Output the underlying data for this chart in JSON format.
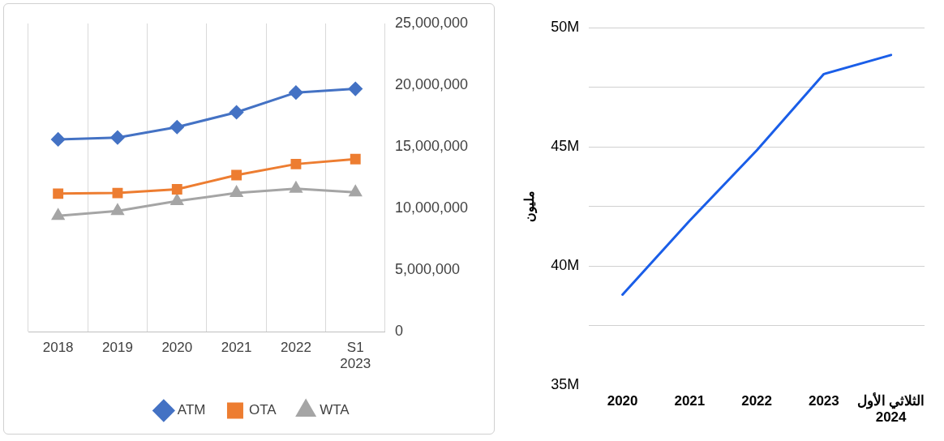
{
  "chart_data": [
    {
      "type": "line",
      "categories": [
        "2018",
        "2019",
        "2020",
        "2021",
        "2022",
        "S1 2023"
      ],
      "series": [
        {
          "name": "ATM",
          "color": "#4472c4",
          "marker": "diamond",
          "values": [
            15600000,
            15750000,
            16600000,
            17800000,
            19400000,
            19700000
          ]
        },
        {
          "name": "OTA",
          "color": "#ed7d31",
          "marker": "square",
          "values": [
            11200000,
            11250000,
            11550000,
            12700000,
            13600000,
            14000000
          ]
        },
        {
          "name": "WTA",
          "color": "#a5a5a5",
          "marker": "triangle",
          "values": [
            9400000,
            9800000,
            10600000,
            11250000,
            11600000,
            11300000
          ]
        }
      ],
      "ylim": [
        0,
        25000000
      ],
      "yticks": [
        {
          "value": 0,
          "label": "0"
        },
        {
          "value": 5000000,
          "label": "5,000,000"
        },
        {
          "value": 10000000,
          "label": "10,000,000"
        },
        {
          "value": 15000000,
          "label": "15,000,000"
        },
        {
          "value": 20000000,
          "label": "20,000,000"
        },
        {
          "value": 25000000,
          "label": "25,000,000"
        }
      ],
      "grid": "x",
      "legend": "bottom",
      "line_style": "solid"
    },
    {
      "type": "line",
      "categories": [
        "2020",
        "2021",
        "2022",
        "2023",
        "الثلاثي الأول 2024"
      ],
      "series": [
        {
          "color": "#1a5ee8",
          "values": [
            38800000,
            41900000,
            44850000,
            48050000,
            48850000
          ]
        }
      ],
      "ylabel": "مليون",
      "ylim": [
        35000000,
        50000000
      ],
      "yticks": [
        {
          "value": 35000000,
          "label": "35M"
        },
        {
          "value": 37500000,
          "label": null
        },
        {
          "value": 40000000,
          "label": "40M"
        },
        {
          "value": 42500000,
          "label": null
        },
        {
          "value": 45000000,
          "label": "45M"
        },
        {
          "value": 47500000,
          "label": null
        },
        {
          "value": 50000000,
          "label": "50M"
        }
      ],
      "grid": "y",
      "legend": false,
      "marker": "none",
      "line_style": "solid"
    }
  ]
}
